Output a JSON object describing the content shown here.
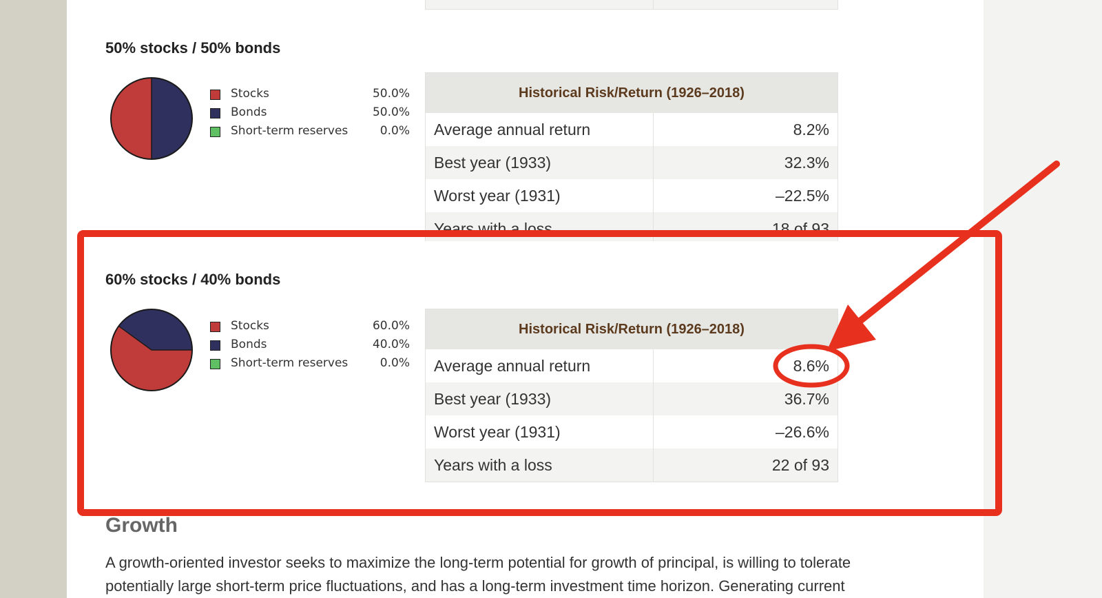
{
  "colors": {
    "stocks": "#c03c3a",
    "bonds": "#30305e",
    "short_term": "#5ec063",
    "annotation": "#e8301f",
    "table_header_text": "#5c3a1e"
  },
  "sections": [
    {
      "title": "50% stocks / 50% bonds",
      "legend": [
        {
          "label": "Stocks",
          "pct": "50.0%",
          "color": "#c03c3a"
        },
        {
          "label": "Bonds",
          "pct": "50.0%",
          "color": "#30305e"
        },
        {
          "label": "Short-term reserves",
          "pct": "0.0%",
          "color": "#5ec063"
        }
      ],
      "table": {
        "header": "Historical Risk/Return (1926–2018)",
        "rows": [
          {
            "label": "Average annual return",
            "value": "8.2%"
          },
          {
            "label": "Best year (1933)",
            "value": "32.3%"
          },
          {
            "label": "Worst year (1931)",
            "value": "–22.5%"
          },
          {
            "label": "Years with a loss",
            "value": "18 of 93"
          }
        ]
      }
    },
    {
      "title": "60% stocks / 40% bonds",
      "legend": [
        {
          "label": "Stocks",
          "pct": "60.0%",
          "color": "#c03c3a"
        },
        {
          "label": "Bonds",
          "pct": "40.0%",
          "color": "#30305e"
        },
        {
          "label": "Short-term reserves",
          "pct": "0.0%",
          "color": "#5ec063"
        }
      ],
      "table": {
        "header": "Historical Risk/Return (1926–2018)",
        "rows": [
          {
            "label": "Average annual return",
            "value": "8.6%"
          },
          {
            "label": "Best year (1933)",
            "value": "36.7%"
          },
          {
            "label": "Worst year (1931)",
            "value": "–26.6%"
          },
          {
            "label": "Years with a loss",
            "value": "22 of 93"
          }
        ]
      }
    }
  ],
  "growth": {
    "title": "Growth",
    "text": "A growth-oriented investor seeks to maximize the long-term potential for growth of principal, is willing to tolerate potentially large short-term price fluctuations, and has a long-term investment time horizon. Generating current"
  }
}
